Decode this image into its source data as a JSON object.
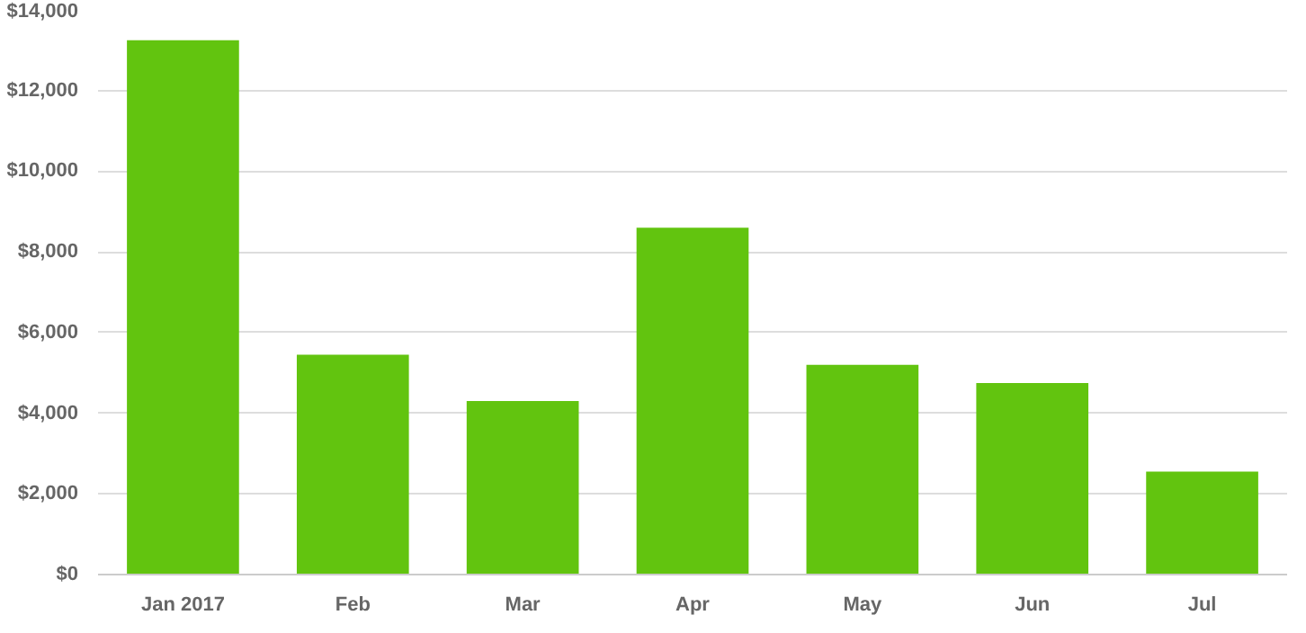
{
  "chart_data": {
    "type": "bar",
    "categories": [
      "Jan 2017",
      "Feb",
      "Mar",
      "Apr",
      "May",
      "Jun",
      "Jul"
    ],
    "values": [
      13250,
      5450,
      4300,
      8600,
      5200,
      4750,
      2550
    ],
    "color": "#62c40f",
    "ylim": [
      0,
      14000
    ],
    "yticks": [
      {
        "value": 0,
        "label": "$0"
      },
      {
        "value": 2000,
        "label": "$2,000"
      },
      {
        "value": 4000,
        "label": "$4,000"
      },
      {
        "value": 6000,
        "label": "$6,000"
      },
      {
        "value": 8000,
        "label": "$8,000"
      },
      {
        "value": 10000,
        "label": "$10,000"
      },
      {
        "value": 12000,
        "label": "$12,000"
      },
      {
        "value": 14000,
        "label": "$14,000"
      }
    ],
    "grid": "y"
  }
}
